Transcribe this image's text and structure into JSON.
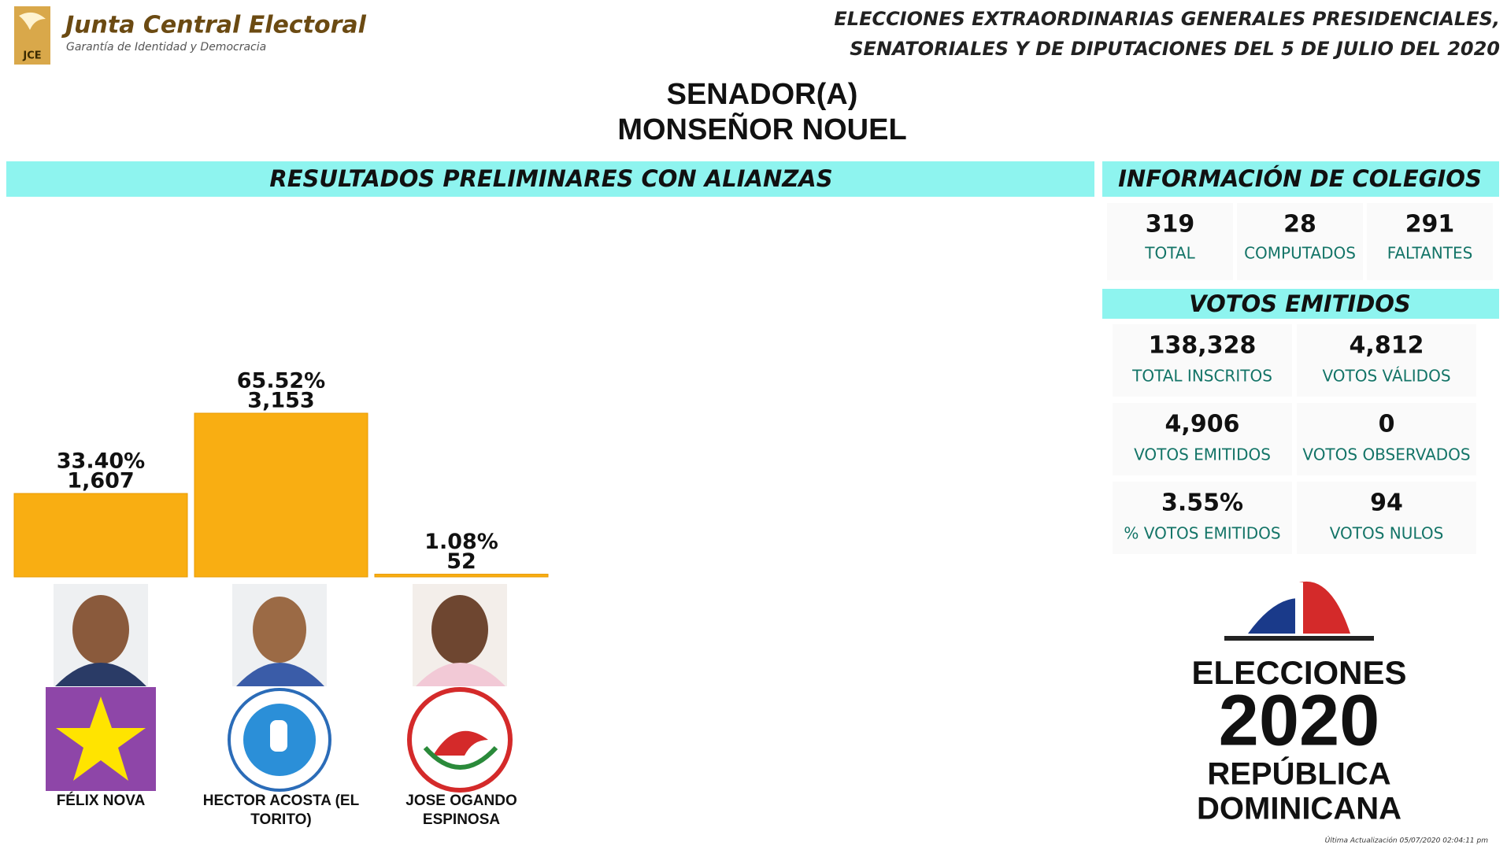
{
  "header": {
    "org_name": "Junta Central Electoral",
    "org_tagline": "Garantía de Identidad y Democracia",
    "org_abbr": "JCE",
    "election_line1": "ELECCIONES EXTRAORDINARIAS GENERALES PRESIDENCIALES,",
    "election_line2": "SENATORIALES Y DE DIPUTACIONES DEL 5 DE JULIO DEL 2020",
    "office": "SENADOR(A)",
    "province": "MONSEÑOR NOUEL"
  },
  "chart_data": {
    "type": "bar",
    "title": "RESULTADOS PRELIMINARES CON ALIANZAS",
    "categories": [
      "FÉLIX NOVA",
      "HECTOR ACOSTA (EL TORITO)",
      "JOSE OGANDO ESPINOSA"
    ],
    "values": [
      1607,
      3153,
      52
    ],
    "value_labels": [
      "1,607",
      "3,153",
      "52"
    ],
    "shares": [
      33.4,
      65.52,
      1.08
    ],
    "share_labels": [
      "33.40%",
      "65.52%",
      "1.08%"
    ],
    "color": "#f9ae12"
  },
  "colegios": {
    "title": "INFORMACIÓN DE COLEGIOS",
    "items": [
      {
        "value": "319",
        "label": "TOTAL"
      },
      {
        "value": "28",
        "label": "COMPUTADOS"
      },
      {
        "value": "291",
        "label": "FALTANTES"
      }
    ]
  },
  "votos": {
    "title": "VOTOS EMITIDOS",
    "items": [
      {
        "value": "138,328",
        "label": "TOTAL INSCRITOS"
      },
      {
        "value": "4,812",
        "label": "VOTOS VÁLIDOS"
      },
      {
        "value": "4,906",
        "label": "VOTOS EMITIDOS"
      },
      {
        "value": "0",
        "label": "VOTOS OBSERVADOS"
      },
      {
        "value": "3.55%",
        "label": "% VOTOS EMITIDOS"
      },
      {
        "value": "94",
        "label": "VOTOS NULOS"
      }
    ]
  },
  "brand": {
    "line1": "ELECCIONES",
    "year": "2020",
    "line2": "REPÚBLICA",
    "line3": "DOMINICANA"
  },
  "footer": {
    "updated": "Última Actualización 05/07/2020 02:04:11 pm"
  }
}
